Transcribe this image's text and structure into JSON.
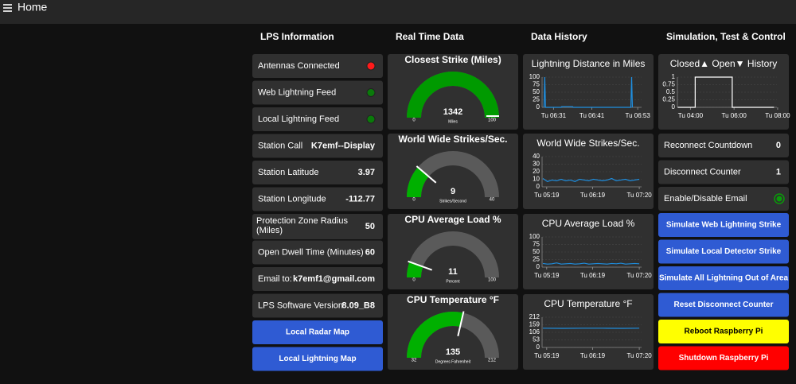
{
  "header": {
    "title": "Home"
  },
  "columns": [
    "LPS Information",
    "Real Time Data",
    "Data History",
    "Simulation, Test & Control"
  ],
  "lps_info": {
    "items": [
      {
        "label": "Antennas Connected",
        "indicator": "#ff1a1a"
      },
      {
        "label": "Web Lightning Feed",
        "indicator": "#0a7a0a"
      },
      {
        "label": "Local Lightning Feed",
        "indicator": "#0a7a0a"
      },
      {
        "label": "Station Call",
        "value": "K7emf--Display"
      },
      {
        "label": "Station Latitude",
        "value": 3.97
      },
      {
        "label": "Station Longitude",
        "value": -112.77
      },
      {
        "label": "Protection Zone Radius (Miles)",
        "value": 50
      },
      {
        "label": "Open Dwell Time (Minutes)",
        "value": 60
      },
      {
        "label": "Email to:",
        "value": "k7emf1@gmail.com"
      },
      {
        "label": "LPS Software Version",
        "value": "8.09_B8"
      }
    ],
    "buttons": [
      {
        "label": "Local Radar Map",
        "color": "#2f5bd3",
        "text_color": "#ffffff"
      },
      {
        "label": "Local Lightning Map",
        "color": "#2f5bd3",
        "text_color": "#ffffff"
      }
    ]
  },
  "simulation": {
    "counters": [
      {
        "label": "Reconnect Countdown",
        "value": 0
      },
      {
        "label": "Disconnect Counter",
        "value": 1
      }
    ],
    "toggle": {
      "label": "Enable/Disable Email",
      "color": "#0a9a0a"
    },
    "buttons": [
      {
        "label": "Simulate Web Lightning Strike",
        "color": "#2f5bd3",
        "text_color": "#ffffff"
      },
      {
        "label": "Simulate Local Detector Strike",
        "color": "#2f5bd3",
        "text_color": "#ffffff"
      },
      {
        "label": "Simulate All Lightning Out of Area",
        "color": "#2f5bd3",
        "text_color": "#ffffff"
      },
      {
        "label": "Reset Disconnect Counter",
        "color": "#2f5bd3",
        "text_color": "#ffffff"
      },
      {
        "label": "Reboot Raspberry Pi",
        "color": "#ffff00",
        "text_color": "#000000"
      },
      {
        "label": "Shutdown Raspberry Pi",
        "color": "#ff0000",
        "text_color": "#ffffff"
      }
    ]
  },
  "chart_data": [
    {
      "type": "gauge",
      "title": "Closest Strike (Miles)",
      "value": 1342,
      "min": 0,
      "max": 100,
      "units": "Miles",
      "color": "#009a00"
    },
    {
      "type": "gauge",
      "title": "World Wide Strikes/Sec.",
      "value": 9,
      "min": 0,
      "max": 40,
      "units": "Strikes/Second",
      "color": "#00b000"
    },
    {
      "type": "gauge",
      "title": "CPU Average Load %",
      "value": 11,
      "min": 0,
      "max": 100,
      "units": "Percent",
      "color": "#00b000"
    },
    {
      "type": "gauge",
      "title": "CPU Temperature °F",
      "value": 135,
      "min": 32,
      "max": 212,
      "units": "Degrees Fahrenheit",
      "color": "#00b000"
    },
    {
      "type": "line",
      "title": "Lightning Distance in Miles",
      "xlim": [
        388,
        414
      ],
      "xticks": [
        {
          "value": 391,
          "label": "Tu 06:31"
        },
        {
          "value": 401,
          "label": "Tu 06:41"
        },
        {
          "value": 413,
          "label": "Tu 06:53"
        }
      ],
      "ylim": [
        0,
        100
      ],
      "yticks": [
        100,
        75,
        50,
        25,
        0
      ],
      "grid": true,
      "series": [
        {
          "color": "#1f8fe0",
          "x": [
            388.5,
            388.7,
            388.9,
            393,
            393.1,
            396,
            396.1,
            411.2,
            411.4,
            411.6
          ],
          "values": [
            0,
            100,
            0,
            0,
            2,
            2,
            0,
            0,
            100,
            0
          ]
        }
      ]
    },
    {
      "type": "line",
      "title": "World Wide Strikes/Sec.",
      "xlim": [
        313,
        443
      ],
      "xticks": [
        {
          "value": 319,
          "label": "Tu 05:19"
        },
        {
          "value": 379,
          "label": "Tu 06:19"
        },
        {
          "value": 440,
          "label": "Tu 07:20"
        }
      ],
      "ylim": [
        0,
        40
      ],
      "yticks": [
        40,
        30,
        20,
        10,
        0
      ],
      "grid": true,
      "series": [
        {
          "color": "#1f8fe0",
          "x": [
            314,
            320,
            326,
            332,
            338,
            344,
            350,
            356,
            362,
            368,
            374,
            380,
            386,
            392,
            398,
            404,
            410,
            416,
            422,
            428,
            434,
            440
          ],
          "values": [
            11,
            7,
            9,
            8,
            10,
            8,
            9,
            7,
            10,
            9,
            8,
            10,
            9,
            8,
            9,
            11,
            8,
            9,
            10,
            8,
            9,
            10
          ]
        }
      ]
    },
    {
      "type": "line",
      "title": "CPU Average Load %",
      "xlim": [
        313,
        443
      ],
      "xticks": [
        {
          "value": 319,
          "label": "Tu 05:19"
        },
        {
          "value": 379,
          "label": "Tu 06:19"
        },
        {
          "value": 440,
          "label": "Tu 07:20"
        }
      ],
      "ylim": [
        0,
        100
      ],
      "yticks": [
        100,
        75,
        50,
        25,
        0
      ],
      "grid": true,
      "series": [
        {
          "color": "#1f8fe0",
          "x": [
            314,
            320,
            326,
            332,
            338,
            344,
            350,
            356,
            362,
            368,
            374,
            380,
            386,
            392,
            398,
            404,
            410,
            416,
            422,
            428,
            434,
            440
          ],
          "values": [
            12,
            10,
            11,
            14,
            10,
            11,
            12,
            10,
            11,
            13,
            10,
            11,
            12,
            11,
            10,
            12,
            11,
            13,
            10,
            11,
            12,
            11
          ]
        }
      ]
    },
    {
      "type": "line",
      "title": "CPU Temperature °F",
      "xlim": [
        313,
        443
      ],
      "xticks": [
        {
          "value": 319,
          "label": "Tu 05:19"
        },
        {
          "value": 379,
          "label": "Tu 06:19"
        },
        {
          "value": 440,
          "label": "Tu 07:20"
        }
      ],
      "ylim": [
        0,
        212
      ],
      "yticks": [
        212,
        159,
        106,
        53,
        0
      ],
      "grid": true,
      "series": [
        {
          "color": "#1f8fe0",
          "x": [
            314,
            340,
            366,
            392,
            418,
            440
          ],
          "values": [
            135,
            134,
            135,
            135,
            134,
            135
          ]
        }
      ]
    },
    {
      "type": "line",
      "title": "Closed▲ Open▼ History",
      "xlim": [
        204,
        478
      ],
      "xticks": [
        {
          "value": 240,
          "label": "Tu 04:00"
        },
        {
          "value": 360,
          "label": "Tu 06:00"
        },
        {
          "value": 480,
          "label": "Tu 08:00"
        }
      ],
      "ylim": [
        0,
        1
      ],
      "yticks": [
        1,
        0.75,
        0.5,
        0.25,
        0
      ],
      "grid": true,
      "series": [
        {
          "color": "#ffffff",
          "x": [
            205,
            253,
            253,
            355,
            355,
            470
          ],
          "values": [
            0,
            0,
            1,
            1,
            0,
            0
          ]
        }
      ]
    }
  ]
}
